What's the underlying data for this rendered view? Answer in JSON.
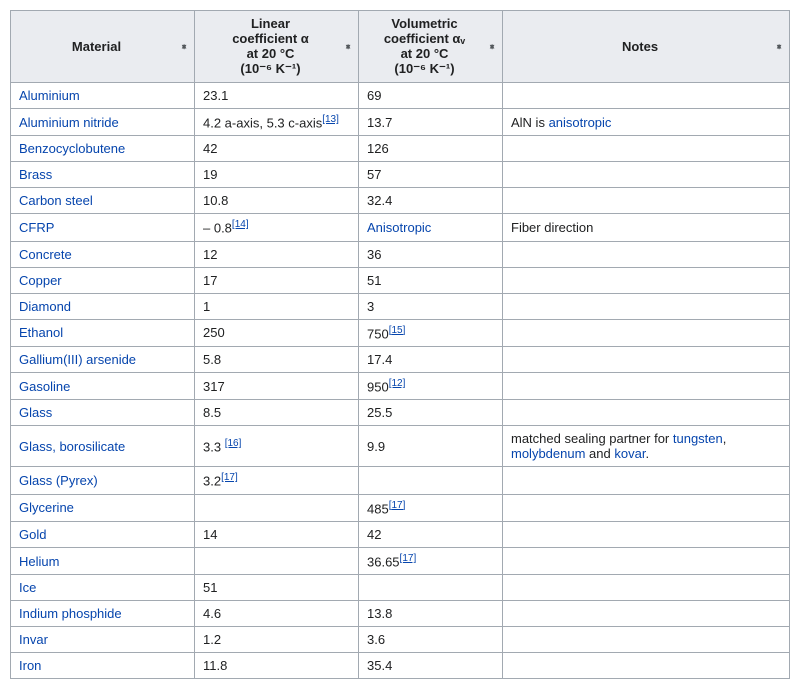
{
  "headers": {
    "material": "Material",
    "linear_l1": "Linear",
    "linear_l2": "coefficient α",
    "linear_l3": "at 20 °C",
    "linear_l4": "(10⁻⁶ K⁻¹)",
    "vol_l1": "Volumetric",
    "vol_l2": "coefficient αᵥ",
    "vol_l3": "at 20 °C",
    "vol_l4": "(10⁻⁶ K⁻¹)",
    "notes": "Notes"
  },
  "rows": [
    {
      "material": "Aluminium",
      "mat_link": true,
      "linear": "23.1",
      "lin_ref": "",
      "vol": "69",
      "vol_ref": "",
      "notes": ""
    },
    {
      "material": "Aluminium nitride",
      "mat_link": true,
      "linear": "4.2 a-axis, 5.3 c-axis",
      "lin_ref": "[13]",
      "vol": "13.7",
      "vol_ref": "",
      "notes": "AlN is ",
      "note_link": "anisotropic"
    },
    {
      "material": "Benzocyclobutene",
      "mat_link": true,
      "linear": "42",
      "lin_ref": "",
      "vol": "126",
      "vol_ref": "",
      "notes": ""
    },
    {
      "material": "Brass",
      "mat_link": true,
      "linear": "19",
      "lin_ref": "",
      "vol": "57",
      "vol_ref": "",
      "notes": ""
    },
    {
      "material": "Carbon steel",
      "mat_link": true,
      "linear": "10.8",
      "lin_ref": "",
      "vol": "32.4",
      "vol_ref": "",
      "notes": ""
    },
    {
      "material": "CFRP",
      "mat_link": true,
      "linear": "– 0.8",
      "lin_ref": "[14]",
      "vol": "Anisotropic",
      "vol_link": true,
      "vol_ref": "",
      "notes": "Fiber direction"
    },
    {
      "material": "Concrete",
      "mat_link": true,
      "linear": "12",
      "lin_ref": "",
      "vol": "36",
      "vol_ref": "",
      "notes": ""
    },
    {
      "material": "Copper",
      "mat_link": true,
      "linear": "17",
      "lin_ref": "",
      "vol": "51",
      "vol_ref": "",
      "notes": ""
    },
    {
      "material": "Diamond",
      "mat_link": true,
      "linear": "1",
      "lin_ref": "",
      "vol": "3",
      "vol_ref": "",
      "notes": ""
    },
    {
      "material": "Ethanol",
      "mat_link": true,
      "linear": "250",
      "lin_ref": "",
      "vol": "750",
      "vol_ref": "[15]",
      "notes": ""
    },
    {
      "material": "Gallium(III) arsenide",
      "mat_link": true,
      "linear": "5.8",
      "lin_ref": "",
      "vol": "17.4",
      "vol_ref": "",
      "notes": ""
    },
    {
      "material": "Gasoline",
      "mat_link": true,
      "linear": "317",
      "lin_ref": "",
      "vol": "950",
      "vol_ref": "[12]",
      "notes": ""
    },
    {
      "material": "Glass",
      "mat_link": true,
      "linear": "8.5",
      "lin_ref": "",
      "vol": "25.5",
      "vol_ref": "",
      "notes": ""
    },
    {
      "material": "Glass, borosilicate",
      "mat_link": true,
      "linear": "3.3 ",
      "lin_ref": "[16]",
      "vol": "9.9",
      "vol_ref": "",
      "notes": "matched sealing partner for ",
      "note_links": [
        "tungsten",
        "molybdenum",
        "kovar"
      ],
      "notes_sep1": ", ",
      "notes_sep2": " and ",
      "notes_tail": "."
    },
    {
      "material": "Glass (Pyrex)",
      "mat_link": true,
      "linear": "3.2",
      "lin_ref": "[17]",
      "vol": "",
      "vol_ref": "",
      "notes": ""
    },
    {
      "material": "Glycerine",
      "mat_link": true,
      "linear": "",
      "lin_ref": "",
      "vol": "485",
      "vol_ref": "[17]",
      "notes": ""
    },
    {
      "material": "Gold",
      "mat_link": true,
      "linear": "14",
      "lin_ref": "",
      "vol": "42",
      "vol_ref": "",
      "notes": ""
    },
    {
      "material": "Helium",
      "mat_link": true,
      "linear": "",
      "lin_ref": "",
      "vol": "36.65",
      "vol_ref": "[17]",
      "notes": ""
    },
    {
      "material": "Ice",
      "mat_link": true,
      "linear": "51",
      "lin_ref": "",
      "vol": "",
      "vol_ref": "",
      "notes": ""
    },
    {
      "material": "Indium phosphide",
      "mat_link": true,
      "linear": "4.6",
      "lin_ref": "",
      "vol": "13.8",
      "vol_ref": "",
      "notes": ""
    },
    {
      "material": "Invar",
      "mat_link": true,
      "linear": "1.2",
      "lin_ref": "",
      "vol": "3.6",
      "vol_ref": "",
      "notes": ""
    },
    {
      "material": "Iron",
      "mat_link": true,
      "linear": "11.8",
      "lin_ref": "",
      "vol": "35.4",
      "vol_ref": "",
      "notes": ""
    }
  ],
  "colors": {
    "link": "#0645ad",
    "border": "#a2a9b1",
    "header_bg": "#eaecf0",
    "cell_bg": "#ffffff"
  }
}
